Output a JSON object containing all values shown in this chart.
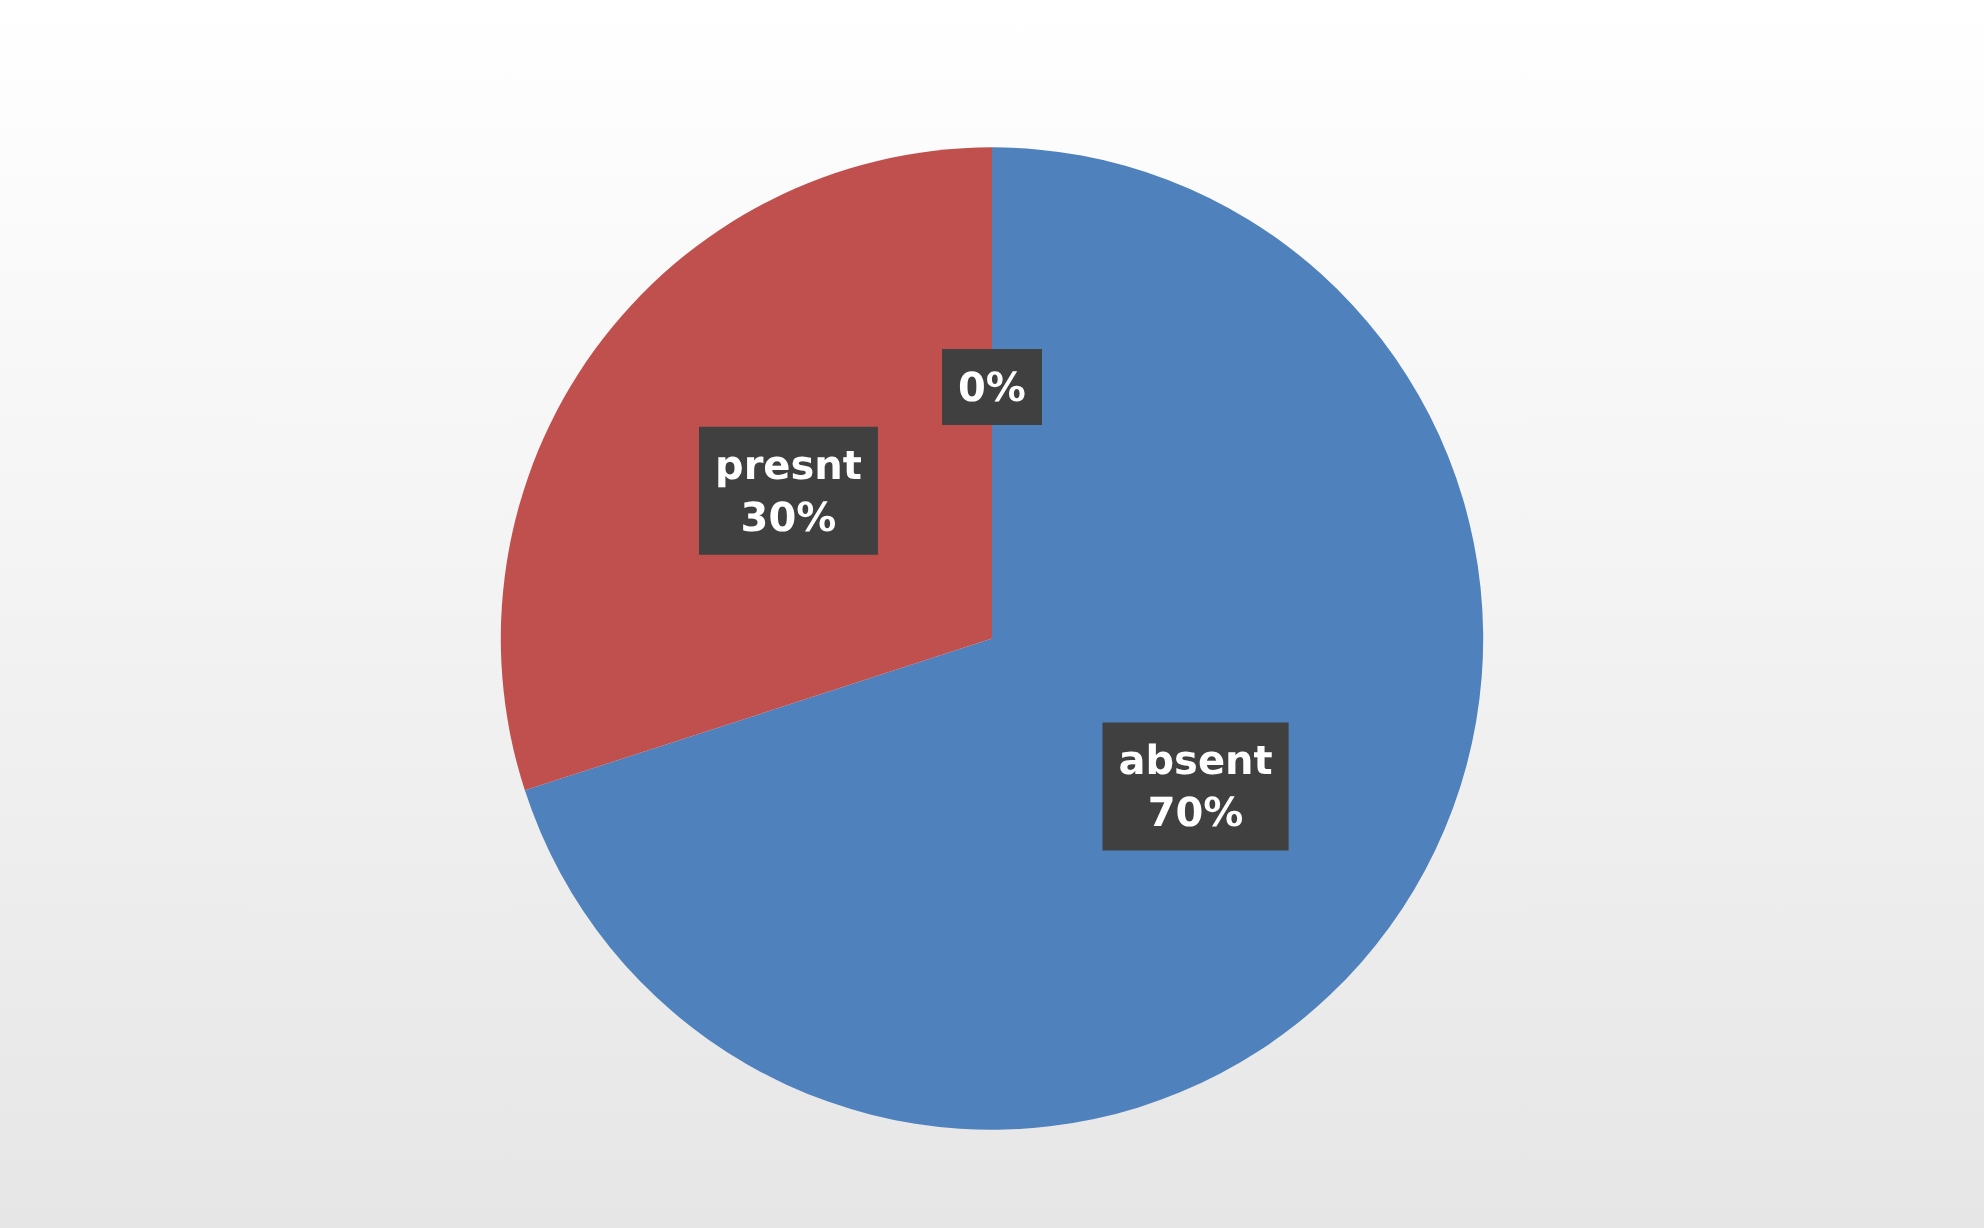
{
  "chart_data": {
    "type": "pie",
    "categories": [
      "absent",
      "presnt",
      null
    ],
    "values": [
      70,
      30,
      0
    ],
    "value_labels": [
      "70%",
      "30%",
      "0%"
    ],
    "colors": [
      "#4f81bd",
      "#c0504d",
      "#9bbb59"
    ],
    "legend": false
  }
}
